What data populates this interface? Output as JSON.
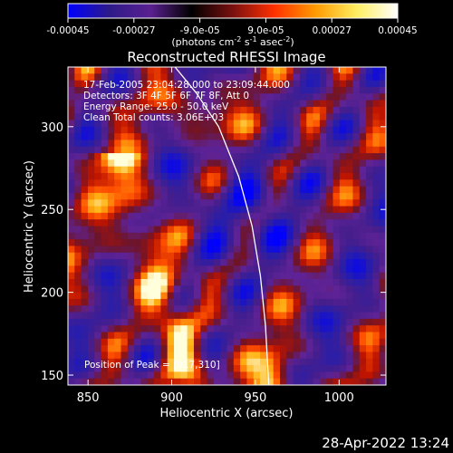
{
  "chart_data": {
    "type": "heatmap",
    "title": "Reconstructed RHESSI Image",
    "xlabel": "Heliocentric X (arcsec)",
    "ylabel": "Heliocentric Y (arcsec)",
    "xlim": [
      838,
      1028
    ],
    "ylim": [
      144,
      336
    ],
    "x_ticks": [
      850,
      900,
      950,
      1000
    ],
    "y_ticks": [
      150,
      200,
      250,
      300
    ],
    "colorbar": {
      "min": -0.00045,
      "max": 0.00045,
      "tick_labels": [
        "-0.00045",
        "-0.00027",
        "-9.0e-05",
        "9.0e-05",
        "0.00027",
        "0.00045"
      ],
      "unit_text": "(photons cm",
      "unit_sup1": "-2",
      "unit_mid": " s",
      "unit_sup2": "-1",
      "unit_end": " asec",
      "unit_sup3": "-2",
      "unit_close": ")",
      "colors": [
        "#0000ff",
        "#2d1a8a",
        "#5a2090",
        "#000000",
        "#7a1010",
        "#ff3000",
        "#ff9a00",
        "#ffee60",
        "#ffffff"
      ]
    },
    "annotations": [
      "17-Feb-2005 23:04:28.000 to 23:09:44.000",
      "Detectors: 3F 4F 5F 6F 7F 8F, Att 0",
      "Energy Range: 25.0 - 50.0 keV",
      "Clean     Total counts: 3.06E+03"
    ],
    "peak_label": "Position of Peak = [917,310]",
    "limb_curve": [
      [
        902,
        336
      ],
      [
        915,
        320
      ],
      [
        928,
        300
      ],
      [
        940,
        270
      ],
      [
        948,
        240
      ],
      [
        953,
        210
      ],
      [
        956,
        180
      ],
      [
        958,
        144
      ]
    ]
  },
  "footer_timestamp": "28-Apr-2022 13:24"
}
